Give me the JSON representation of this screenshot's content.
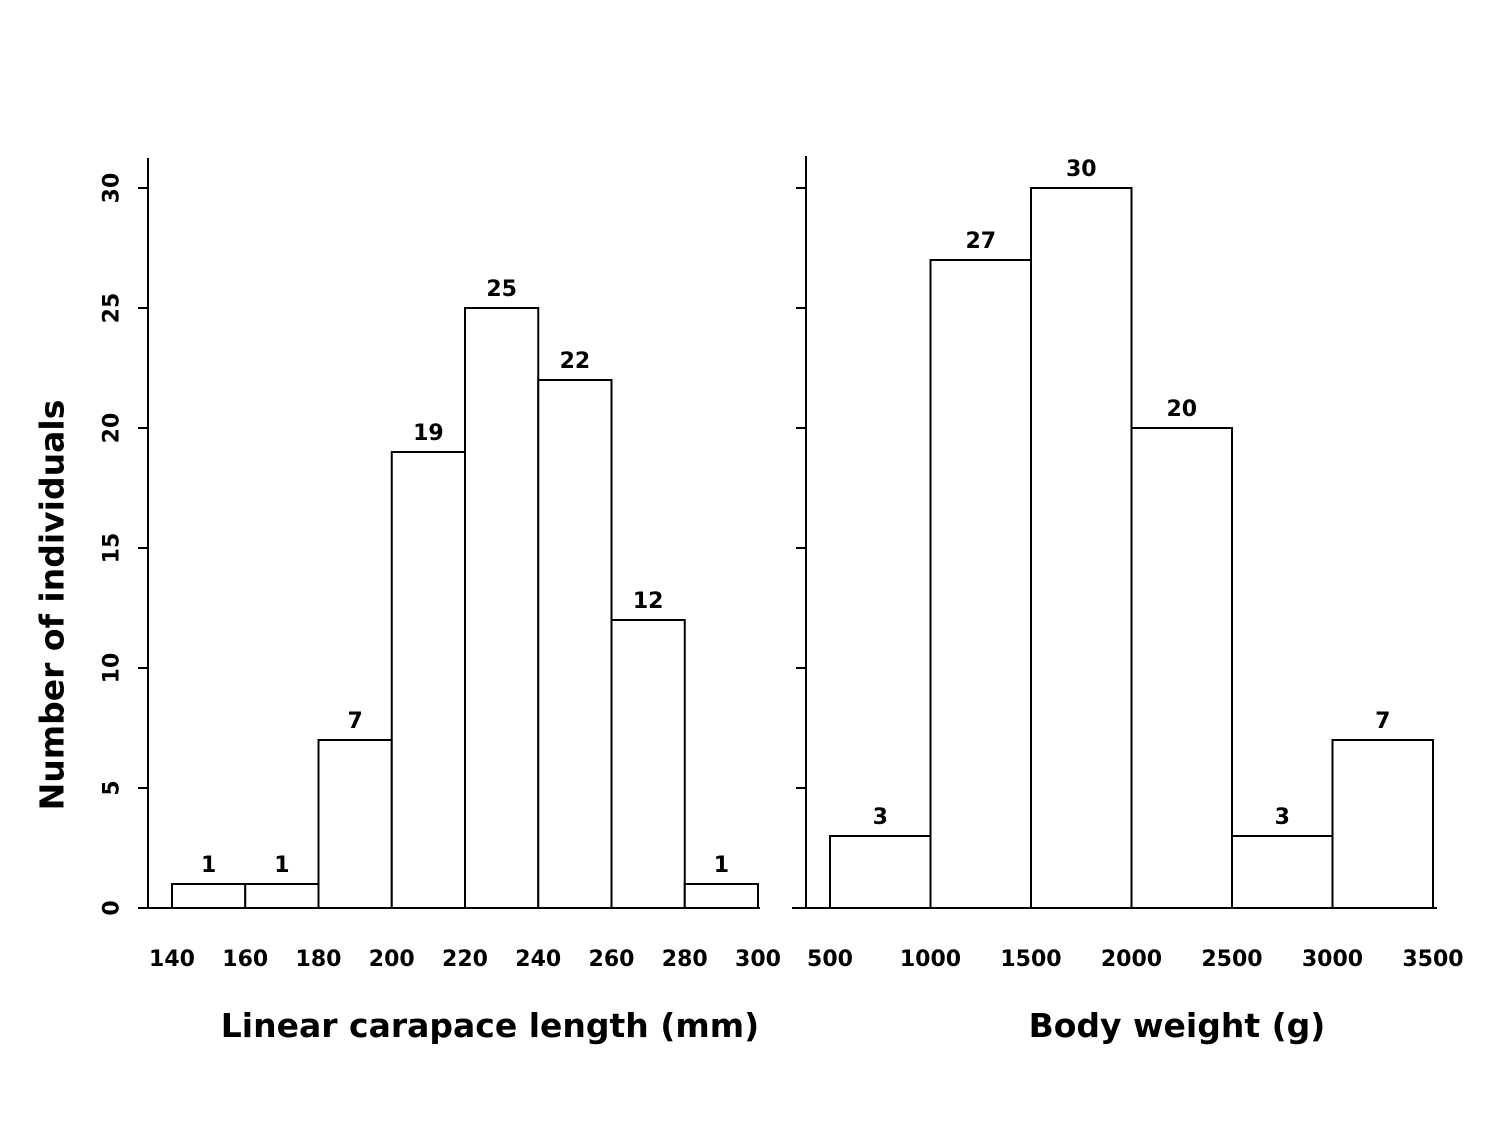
{
  "chart_data": [
    {
      "type": "bar",
      "bins": [
        [
          140,
          160
        ],
        [
          160,
          180
        ],
        [
          180,
          200
        ],
        [
          200,
          220
        ],
        [
          220,
          240
        ],
        [
          240,
          260
        ],
        [
          260,
          280
        ],
        [
          280,
          300
        ]
      ],
      "values": [
        1,
        1,
        7,
        19,
        25,
        22,
        12,
        1
      ],
      "value_labels": [
        "1",
        "1",
        "7",
        "19",
        "25",
        "22",
        "12",
        "1"
      ],
      "x_ticks": [
        140,
        160,
        180,
        200,
        220,
        240,
        260,
        280,
        300
      ],
      "x_tick_labels": [
        "140",
        "160",
        "180",
        "200",
        "220",
        "240",
        "260",
        "280",
        "300"
      ],
      "y_ticks": [
        0,
        5,
        10,
        15,
        20,
        25,
        30
      ],
      "y_tick_labels": [
        "0",
        "5",
        "10",
        "15",
        "20",
        "25",
        "30"
      ],
      "xlabel": "Linear carapace length (mm)",
      "ylabel": "Number of individuals",
      "xlim": [
        140,
        300
      ],
      "ylim": [
        0,
        31.6
      ],
      "grid": false
    },
    {
      "type": "bar",
      "bins": [
        [
          500,
          1000
        ],
        [
          1000,
          1500
        ],
        [
          1500,
          2000
        ],
        [
          2000,
          2500
        ],
        [
          2500,
          3000
        ],
        [
          3000,
          3500
        ]
      ],
      "values": [
        3,
        27,
        30,
        20,
        3,
        7
      ],
      "value_labels": [
        "3",
        "27",
        "30",
        "20",
        "3",
        "7"
      ],
      "x_ticks": [
        500,
        1000,
        1500,
        2000,
        2500,
        3000,
        3500
      ],
      "x_tick_labels": [
        "500",
        "1000",
        "1500",
        "2000",
        "2500",
        "3000",
        "3500"
      ],
      "y_ticks": [
        0,
        5,
        10,
        15,
        20,
        25,
        30
      ],
      "y_tick_labels": [],
      "xlabel": "Body weight (g)",
      "ylabel": "",
      "xlim": [
        500,
        3500
      ],
      "ylim": [
        0,
        31.6
      ],
      "grid": false
    }
  ]
}
